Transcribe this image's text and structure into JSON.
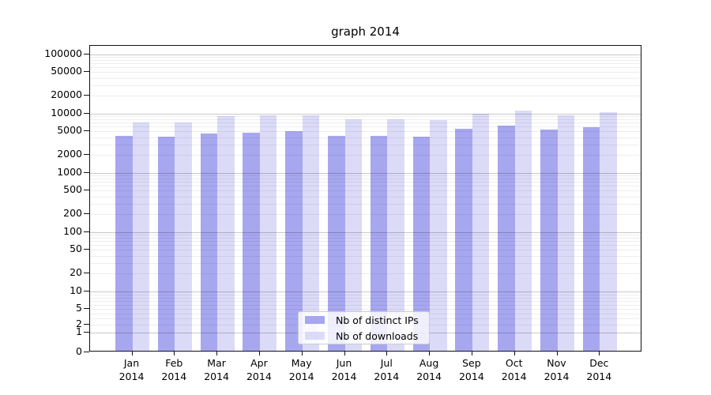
{
  "title": "graph 2014",
  "legend": {
    "items": [
      {
        "label": "Nb of distinct IPs",
        "color": "#a7a7f0"
      },
      {
        "label": "Nb of downloads",
        "color": "#dbdbf8"
      }
    ]
  },
  "chart_data": {
    "type": "bar",
    "title": "graph 2014",
    "categories": [
      "Jan",
      "Feb",
      "Mar",
      "Apr",
      "May",
      "Jun",
      "Jul",
      "Aug",
      "Sep",
      "Oct",
      "Nov",
      "Dec"
    ],
    "x_year_line": "2014",
    "series": [
      {
        "name": "Nb of distinct IPs",
        "color": "#a7a7f0",
        "values": [
          4200,
          4100,
          4600,
          4700,
          5000,
          4200,
          4200,
          4100,
          5500,
          6200,
          5400,
          5900
        ]
      },
      {
        "name": "Nb of downloads",
        "color": "#dbdbf8",
        "values": [
          7000,
          7100,
          9000,
          9300,
          9400,
          7900,
          8000,
          7800,
          10000,
          11100,
          9400,
          10400
        ]
      }
    ],
    "y_axis": {
      "scale": "symlog",
      "tick_values": [
        0,
        1,
        2,
        5,
        10,
        20,
        50,
        100,
        200,
        500,
        1000,
        2000,
        5000,
        10000,
        20000,
        50000,
        100000
      ],
      "tick_labels": [
        "0",
        "1",
        "2",
        "5",
        "10",
        "20",
        "50",
        "100",
        "200",
        "500",
        "1000",
        "2000",
        "5000",
        "10000",
        "20000",
        "50000",
        "100000"
      ],
      "ylim": [
        0,
        100000
      ]
    },
    "grid": true,
    "legend_position": "lower center"
  }
}
